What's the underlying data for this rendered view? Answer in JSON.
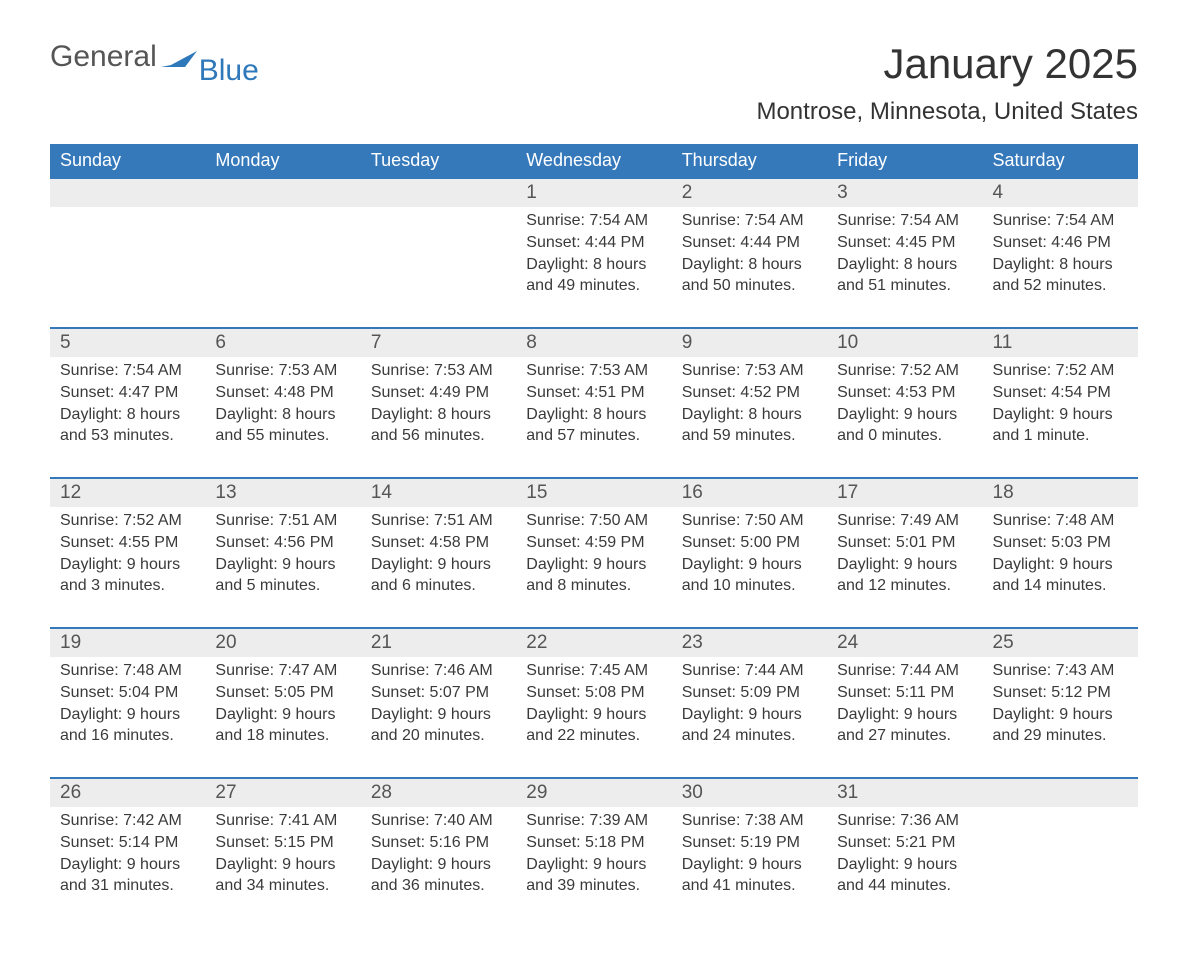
{
  "logo": {
    "text_general": "General",
    "text_blue": "Blue",
    "flag_color": "#2f78ba"
  },
  "title": "January 2025",
  "location": "Montrose, Minnesota, United States",
  "colors": {
    "header_bg": "#3579bb",
    "header_text": "#ffffff",
    "daynum_bg": "#ededed",
    "border": "#3579bb",
    "text": "#3a3a3a",
    "logo_blue": "#2f78ba"
  },
  "typography": {
    "title_fontsize": 42,
    "location_fontsize": 24,
    "header_fontsize": 18,
    "daynum_fontsize": 19,
    "detail_fontsize": 16
  },
  "day_headers": [
    "Sunday",
    "Monday",
    "Tuesday",
    "Wednesday",
    "Thursday",
    "Friday",
    "Saturday"
  ],
  "weeks": [
    [
      null,
      null,
      null,
      {
        "n": "1",
        "sunrise": "Sunrise: 7:54 AM",
        "sunset": "Sunset: 4:44 PM",
        "dl1": "Daylight: 8 hours",
        "dl2": "and 49 minutes."
      },
      {
        "n": "2",
        "sunrise": "Sunrise: 7:54 AM",
        "sunset": "Sunset: 4:44 PM",
        "dl1": "Daylight: 8 hours",
        "dl2": "and 50 minutes."
      },
      {
        "n": "3",
        "sunrise": "Sunrise: 7:54 AM",
        "sunset": "Sunset: 4:45 PM",
        "dl1": "Daylight: 8 hours",
        "dl2": "and 51 minutes."
      },
      {
        "n": "4",
        "sunrise": "Sunrise: 7:54 AM",
        "sunset": "Sunset: 4:46 PM",
        "dl1": "Daylight: 8 hours",
        "dl2": "and 52 minutes."
      }
    ],
    [
      {
        "n": "5",
        "sunrise": "Sunrise: 7:54 AM",
        "sunset": "Sunset: 4:47 PM",
        "dl1": "Daylight: 8 hours",
        "dl2": "and 53 minutes."
      },
      {
        "n": "6",
        "sunrise": "Sunrise: 7:53 AM",
        "sunset": "Sunset: 4:48 PM",
        "dl1": "Daylight: 8 hours",
        "dl2": "and 55 minutes."
      },
      {
        "n": "7",
        "sunrise": "Sunrise: 7:53 AM",
        "sunset": "Sunset: 4:49 PM",
        "dl1": "Daylight: 8 hours",
        "dl2": "and 56 minutes."
      },
      {
        "n": "8",
        "sunrise": "Sunrise: 7:53 AM",
        "sunset": "Sunset: 4:51 PM",
        "dl1": "Daylight: 8 hours",
        "dl2": "and 57 minutes."
      },
      {
        "n": "9",
        "sunrise": "Sunrise: 7:53 AM",
        "sunset": "Sunset: 4:52 PM",
        "dl1": "Daylight: 8 hours",
        "dl2": "and 59 minutes."
      },
      {
        "n": "10",
        "sunrise": "Sunrise: 7:52 AM",
        "sunset": "Sunset: 4:53 PM",
        "dl1": "Daylight: 9 hours",
        "dl2": "and 0 minutes."
      },
      {
        "n": "11",
        "sunrise": "Sunrise: 7:52 AM",
        "sunset": "Sunset: 4:54 PM",
        "dl1": "Daylight: 9 hours",
        "dl2": "and 1 minute."
      }
    ],
    [
      {
        "n": "12",
        "sunrise": "Sunrise: 7:52 AM",
        "sunset": "Sunset: 4:55 PM",
        "dl1": "Daylight: 9 hours",
        "dl2": "and 3 minutes."
      },
      {
        "n": "13",
        "sunrise": "Sunrise: 7:51 AM",
        "sunset": "Sunset: 4:56 PM",
        "dl1": "Daylight: 9 hours",
        "dl2": "and 5 minutes."
      },
      {
        "n": "14",
        "sunrise": "Sunrise: 7:51 AM",
        "sunset": "Sunset: 4:58 PM",
        "dl1": "Daylight: 9 hours",
        "dl2": "and 6 minutes."
      },
      {
        "n": "15",
        "sunrise": "Sunrise: 7:50 AM",
        "sunset": "Sunset: 4:59 PM",
        "dl1": "Daylight: 9 hours",
        "dl2": "and 8 minutes."
      },
      {
        "n": "16",
        "sunrise": "Sunrise: 7:50 AM",
        "sunset": "Sunset: 5:00 PM",
        "dl1": "Daylight: 9 hours",
        "dl2": "and 10 minutes."
      },
      {
        "n": "17",
        "sunrise": "Sunrise: 7:49 AM",
        "sunset": "Sunset: 5:01 PM",
        "dl1": "Daylight: 9 hours",
        "dl2": "and 12 minutes."
      },
      {
        "n": "18",
        "sunrise": "Sunrise: 7:48 AM",
        "sunset": "Sunset: 5:03 PM",
        "dl1": "Daylight: 9 hours",
        "dl2": "and 14 minutes."
      }
    ],
    [
      {
        "n": "19",
        "sunrise": "Sunrise: 7:48 AM",
        "sunset": "Sunset: 5:04 PM",
        "dl1": "Daylight: 9 hours",
        "dl2": "and 16 minutes."
      },
      {
        "n": "20",
        "sunrise": "Sunrise: 7:47 AM",
        "sunset": "Sunset: 5:05 PM",
        "dl1": "Daylight: 9 hours",
        "dl2": "and 18 minutes."
      },
      {
        "n": "21",
        "sunrise": "Sunrise: 7:46 AM",
        "sunset": "Sunset: 5:07 PM",
        "dl1": "Daylight: 9 hours",
        "dl2": "and 20 minutes."
      },
      {
        "n": "22",
        "sunrise": "Sunrise: 7:45 AM",
        "sunset": "Sunset: 5:08 PM",
        "dl1": "Daylight: 9 hours",
        "dl2": "and 22 minutes."
      },
      {
        "n": "23",
        "sunrise": "Sunrise: 7:44 AM",
        "sunset": "Sunset: 5:09 PM",
        "dl1": "Daylight: 9 hours",
        "dl2": "and 24 minutes."
      },
      {
        "n": "24",
        "sunrise": "Sunrise: 7:44 AM",
        "sunset": "Sunset: 5:11 PM",
        "dl1": "Daylight: 9 hours",
        "dl2": "and 27 minutes."
      },
      {
        "n": "25",
        "sunrise": "Sunrise: 7:43 AM",
        "sunset": "Sunset: 5:12 PM",
        "dl1": "Daylight: 9 hours",
        "dl2": "and 29 minutes."
      }
    ],
    [
      {
        "n": "26",
        "sunrise": "Sunrise: 7:42 AM",
        "sunset": "Sunset: 5:14 PM",
        "dl1": "Daylight: 9 hours",
        "dl2": "and 31 minutes."
      },
      {
        "n": "27",
        "sunrise": "Sunrise: 7:41 AM",
        "sunset": "Sunset: 5:15 PM",
        "dl1": "Daylight: 9 hours",
        "dl2": "and 34 minutes."
      },
      {
        "n": "28",
        "sunrise": "Sunrise: 7:40 AM",
        "sunset": "Sunset: 5:16 PM",
        "dl1": "Daylight: 9 hours",
        "dl2": "and 36 minutes."
      },
      {
        "n": "29",
        "sunrise": "Sunrise: 7:39 AM",
        "sunset": "Sunset: 5:18 PM",
        "dl1": "Daylight: 9 hours",
        "dl2": "and 39 minutes."
      },
      {
        "n": "30",
        "sunrise": "Sunrise: 7:38 AM",
        "sunset": "Sunset: 5:19 PM",
        "dl1": "Daylight: 9 hours",
        "dl2": "and 41 minutes."
      },
      {
        "n": "31",
        "sunrise": "Sunrise: 7:36 AM",
        "sunset": "Sunset: 5:21 PM",
        "dl1": "Daylight: 9 hours",
        "dl2": "and 44 minutes."
      },
      null
    ]
  ]
}
